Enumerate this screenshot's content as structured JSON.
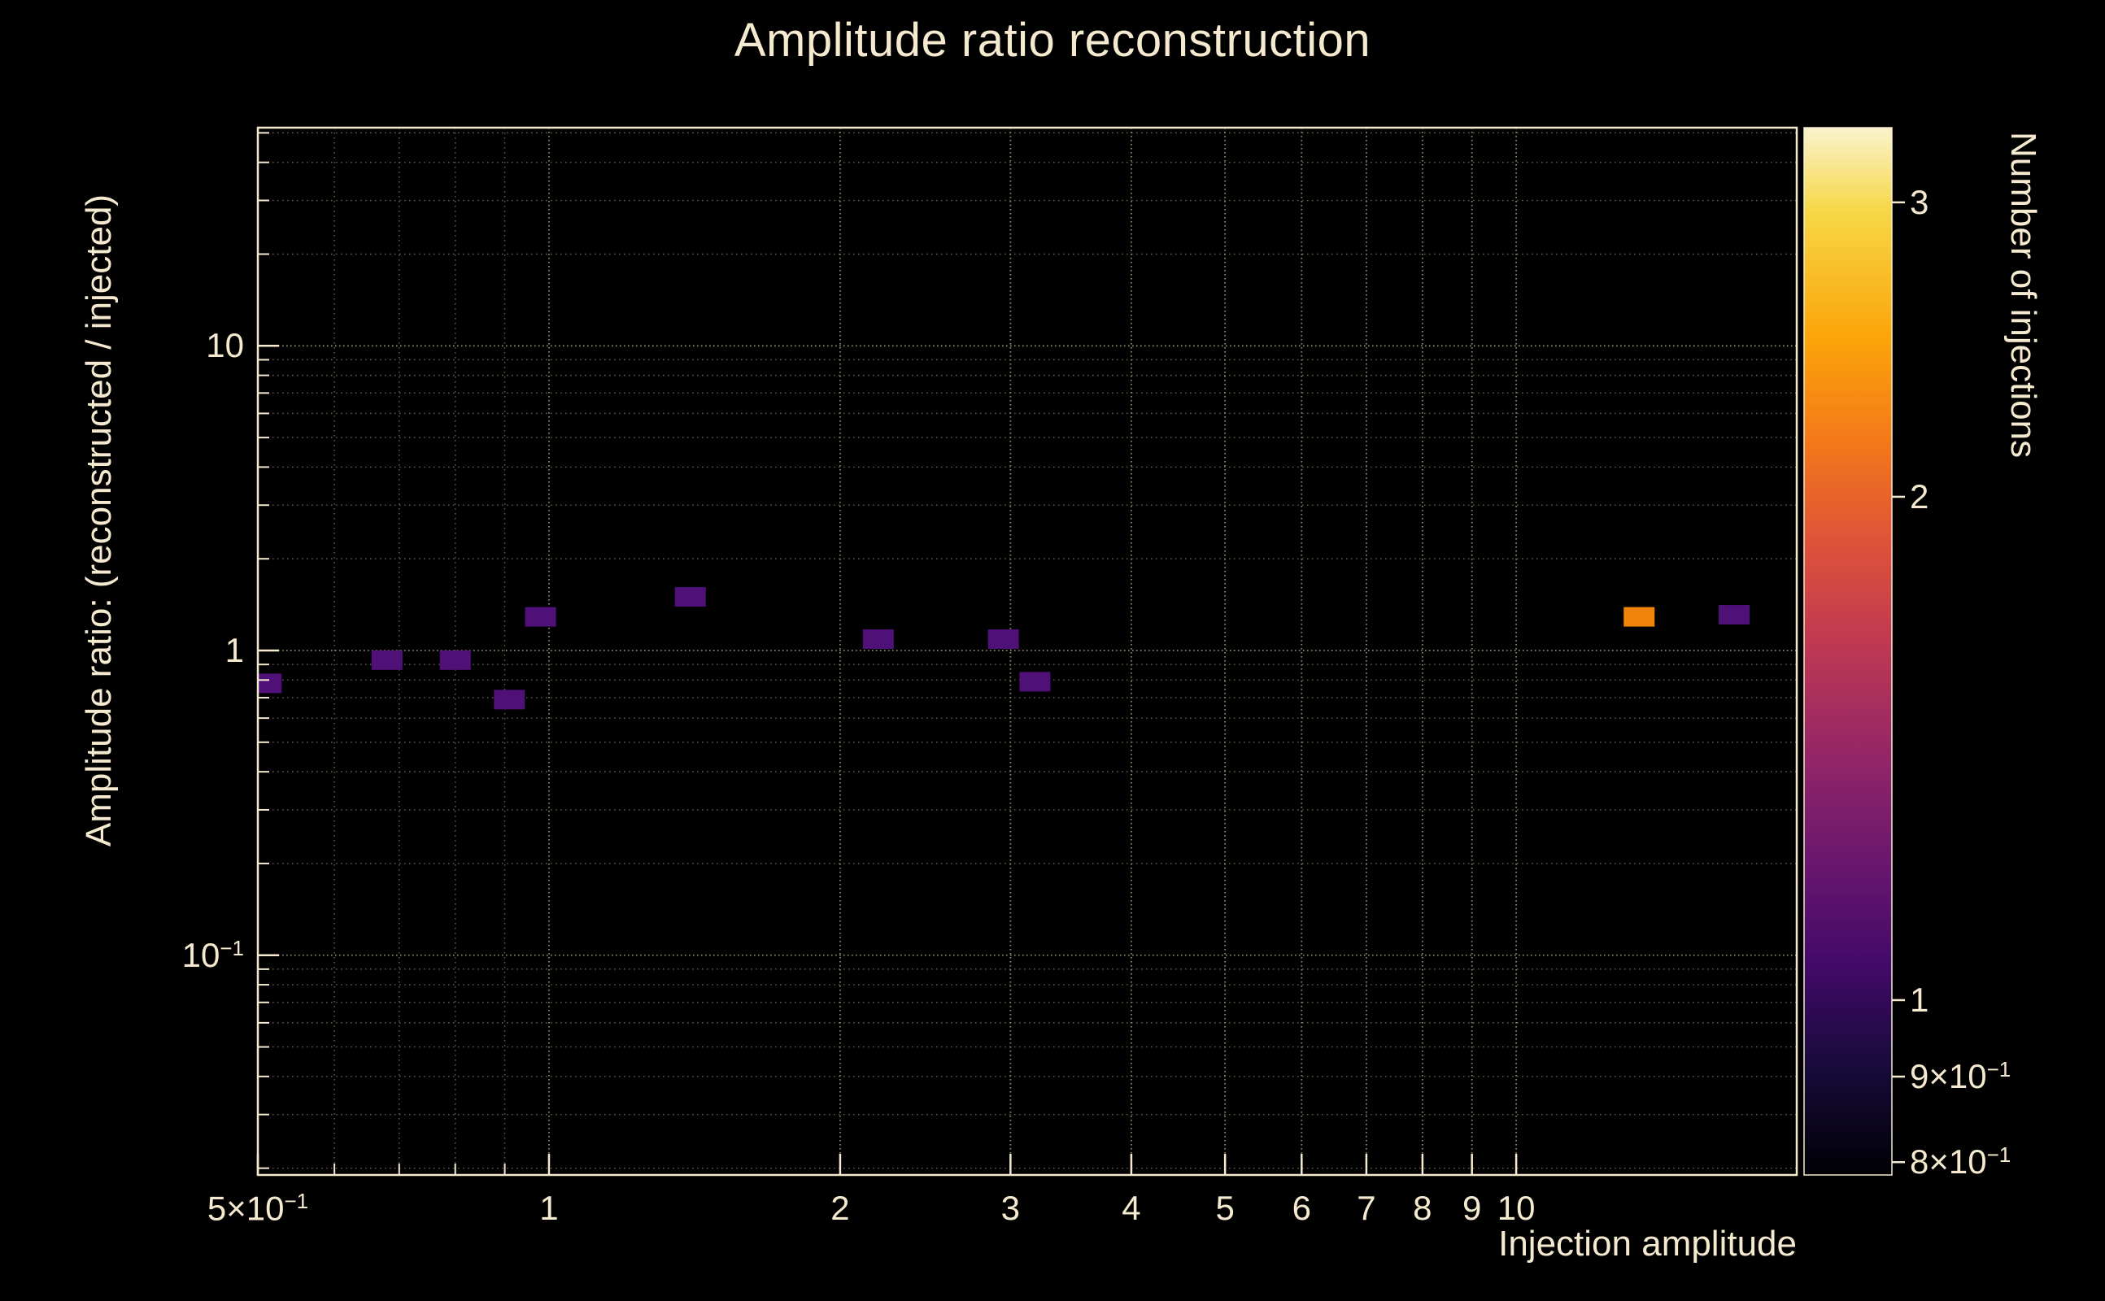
{
  "chart_data": {
    "type": "heatmap",
    "title": "Amplitude ratio reconstruction",
    "xlabel": "Injection amplitude",
    "ylabel": "Amplitude ratio: (reconstructed / injected)",
    "zlabel": "Number of injections",
    "xscale": "log",
    "yscale": "log",
    "zscale": "log",
    "xlim": [
      0.5,
      19.5
    ],
    "ylim": [
      0.019,
      52
    ],
    "zlim": [
      0.786,
      3.325
    ],
    "grid": true,
    "background": "#000000",
    "text_color": "#f5ead0",
    "frame_color": "#f5ead0",
    "grid_major_color": "#8d8568",
    "grid_minor_color": "#655f4a",
    "x_ticks": [
      {
        "v": 0.5,
        "label": "5×10^−1"
      },
      {
        "v": 1,
        "label": "1"
      },
      {
        "v": 2,
        "label": "2"
      },
      {
        "v": 3,
        "label": "3"
      },
      {
        "v": 4,
        "label": "4"
      },
      {
        "v": 5,
        "label": "5"
      },
      {
        "v": 6,
        "label": "6"
      },
      {
        "v": 7,
        "label": "7"
      },
      {
        "v": 8,
        "label": "8"
      },
      {
        "v": 9,
        "label": "9"
      },
      {
        "v": 10,
        "label": "10"
      }
    ],
    "x_minor": [
      0.6,
      0.7,
      0.8,
      0.9
    ],
    "y_ticks": [
      {
        "v": 10,
        "label": "10"
      },
      {
        "v": 1,
        "label": "1"
      },
      {
        "v": 0.1,
        "label": "10^−1"
      }
    ],
    "y_minor": [
      0.02,
      0.03,
      0.04,
      0.05,
      0.06,
      0.07,
      0.08,
      0.09,
      0.2,
      0.3,
      0.4,
      0.5,
      0.6,
      0.7,
      0.8,
      0.9,
      2,
      3,
      4,
      5,
      6,
      7,
      8,
      9,
      20,
      30,
      40,
      50
    ],
    "z_ticks": [
      {
        "v": 3,
        "label": "3"
      },
      {
        "v": 2,
        "label": "2"
      },
      {
        "v": 1,
        "label": "1"
      },
      {
        "v": 0.9,
        "label": "9×10^−1"
      },
      {
        "v": 0.8,
        "label": "8×10^−1"
      }
    ],
    "colormap": [
      {
        "pos": 0.0,
        "color": "#000004"
      },
      {
        "pos": 0.1,
        "color": "#160b39"
      },
      {
        "pos": 0.2,
        "color": "#420a68"
      },
      {
        "pos": 0.3,
        "color": "#6a176e"
      },
      {
        "pos": 0.4,
        "color": "#932667"
      },
      {
        "pos": 0.5,
        "color": "#bc3754"
      },
      {
        "pos": 0.6,
        "color": "#dd513a"
      },
      {
        "pos": 0.7,
        "color": "#f37819"
      },
      {
        "pos": 0.8,
        "color": "#fca50a"
      },
      {
        "pos": 0.92,
        "color": "#f6d746"
      },
      {
        "pos": 1.0,
        "color": "#faf3cd"
      }
    ],
    "count_colors": {
      "1": "#4f1078",
      "2": "#f0850e"
    },
    "points": [
      {
        "x": 0.51,
        "y": 0.78,
        "n": 1
      },
      {
        "x": 0.68,
        "y": 0.93,
        "n": 1
      },
      {
        "x": 0.8,
        "y": 0.93,
        "n": 1
      },
      {
        "x": 0.91,
        "y": 0.69,
        "n": 1
      },
      {
        "x": 0.98,
        "y": 1.29,
        "n": 1
      },
      {
        "x": 1.4,
        "y": 1.5,
        "n": 1
      },
      {
        "x": 2.19,
        "y": 1.09,
        "n": 1
      },
      {
        "x": 2.95,
        "y": 1.09,
        "n": 1
      },
      {
        "x": 3.18,
        "y": 0.79,
        "n": 1
      },
      {
        "x": 13.4,
        "y": 1.29,
        "n": 2
      },
      {
        "x": 16.8,
        "y": 1.31,
        "n": 1
      }
    ]
  }
}
